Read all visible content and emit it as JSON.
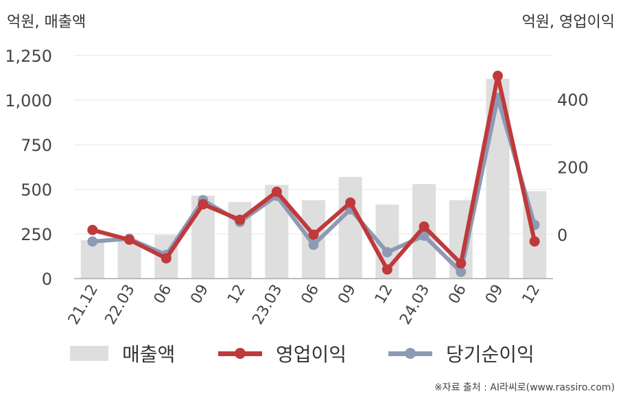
{
  "chart_data": {
    "type": "bar+line",
    "categories": [
      "21.12",
      "22.03",
      "06",
      "09",
      "12",
      "23.03",
      "06",
      "09",
      "12",
      "24.03",
      "06",
      "09",
      "12"
    ],
    "left_axis": {
      "unit_label": "억원, 매출액",
      "ylim": [
        0,
        1250
      ],
      "ticks": [
        0,
        250,
        500,
        750,
        1000,
        1250
      ],
      "tick_labels": [
        "0",
        "250",
        "500",
        "750",
        "1,000",
        "1,250"
      ]
    },
    "right_axis": {
      "unit_label": "억원, 영업이익",
      "ylim": [
        -130,
        530
      ],
      "ticks": [
        0,
        200,
        400
      ],
      "tick_labels": [
        "0",
        "200",
        "400"
      ]
    },
    "series": [
      {
        "name": "매출액",
        "axis": "left",
        "kind": "bar",
        "color": "#dedede",
        "values": [
          215,
          210,
          245,
          465,
          430,
          525,
          440,
          570,
          415,
          530,
          440,
          1120,
          490
        ]
      },
      {
        "name": "영업이익",
        "axis": "right",
        "kind": "line",
        "color": "#c0393b",
        "values": [
          14,
          -15,
          -70,
          90,
          44,
          127,
          0,
          95,
          -103,
          24,
          -85,
          470,
          -20
        ]
      },
      {
        "name": "당기순이익",
        "axis": "right",
        "kind": "line",
        "color": "#8e9ab5",
        "values": [
          -20,
          -12,
          -60,
          102,
          38,
          115,
          -30,
          75,
          -52,
          -3,
          -110,
          405,
          29
        ]
      }
    ],
    "grid": true,
    "legend_position": "bottom"
  },
  "source_note": "※자료 출처 : AI라씨로(www.rassiro.com)"
}
